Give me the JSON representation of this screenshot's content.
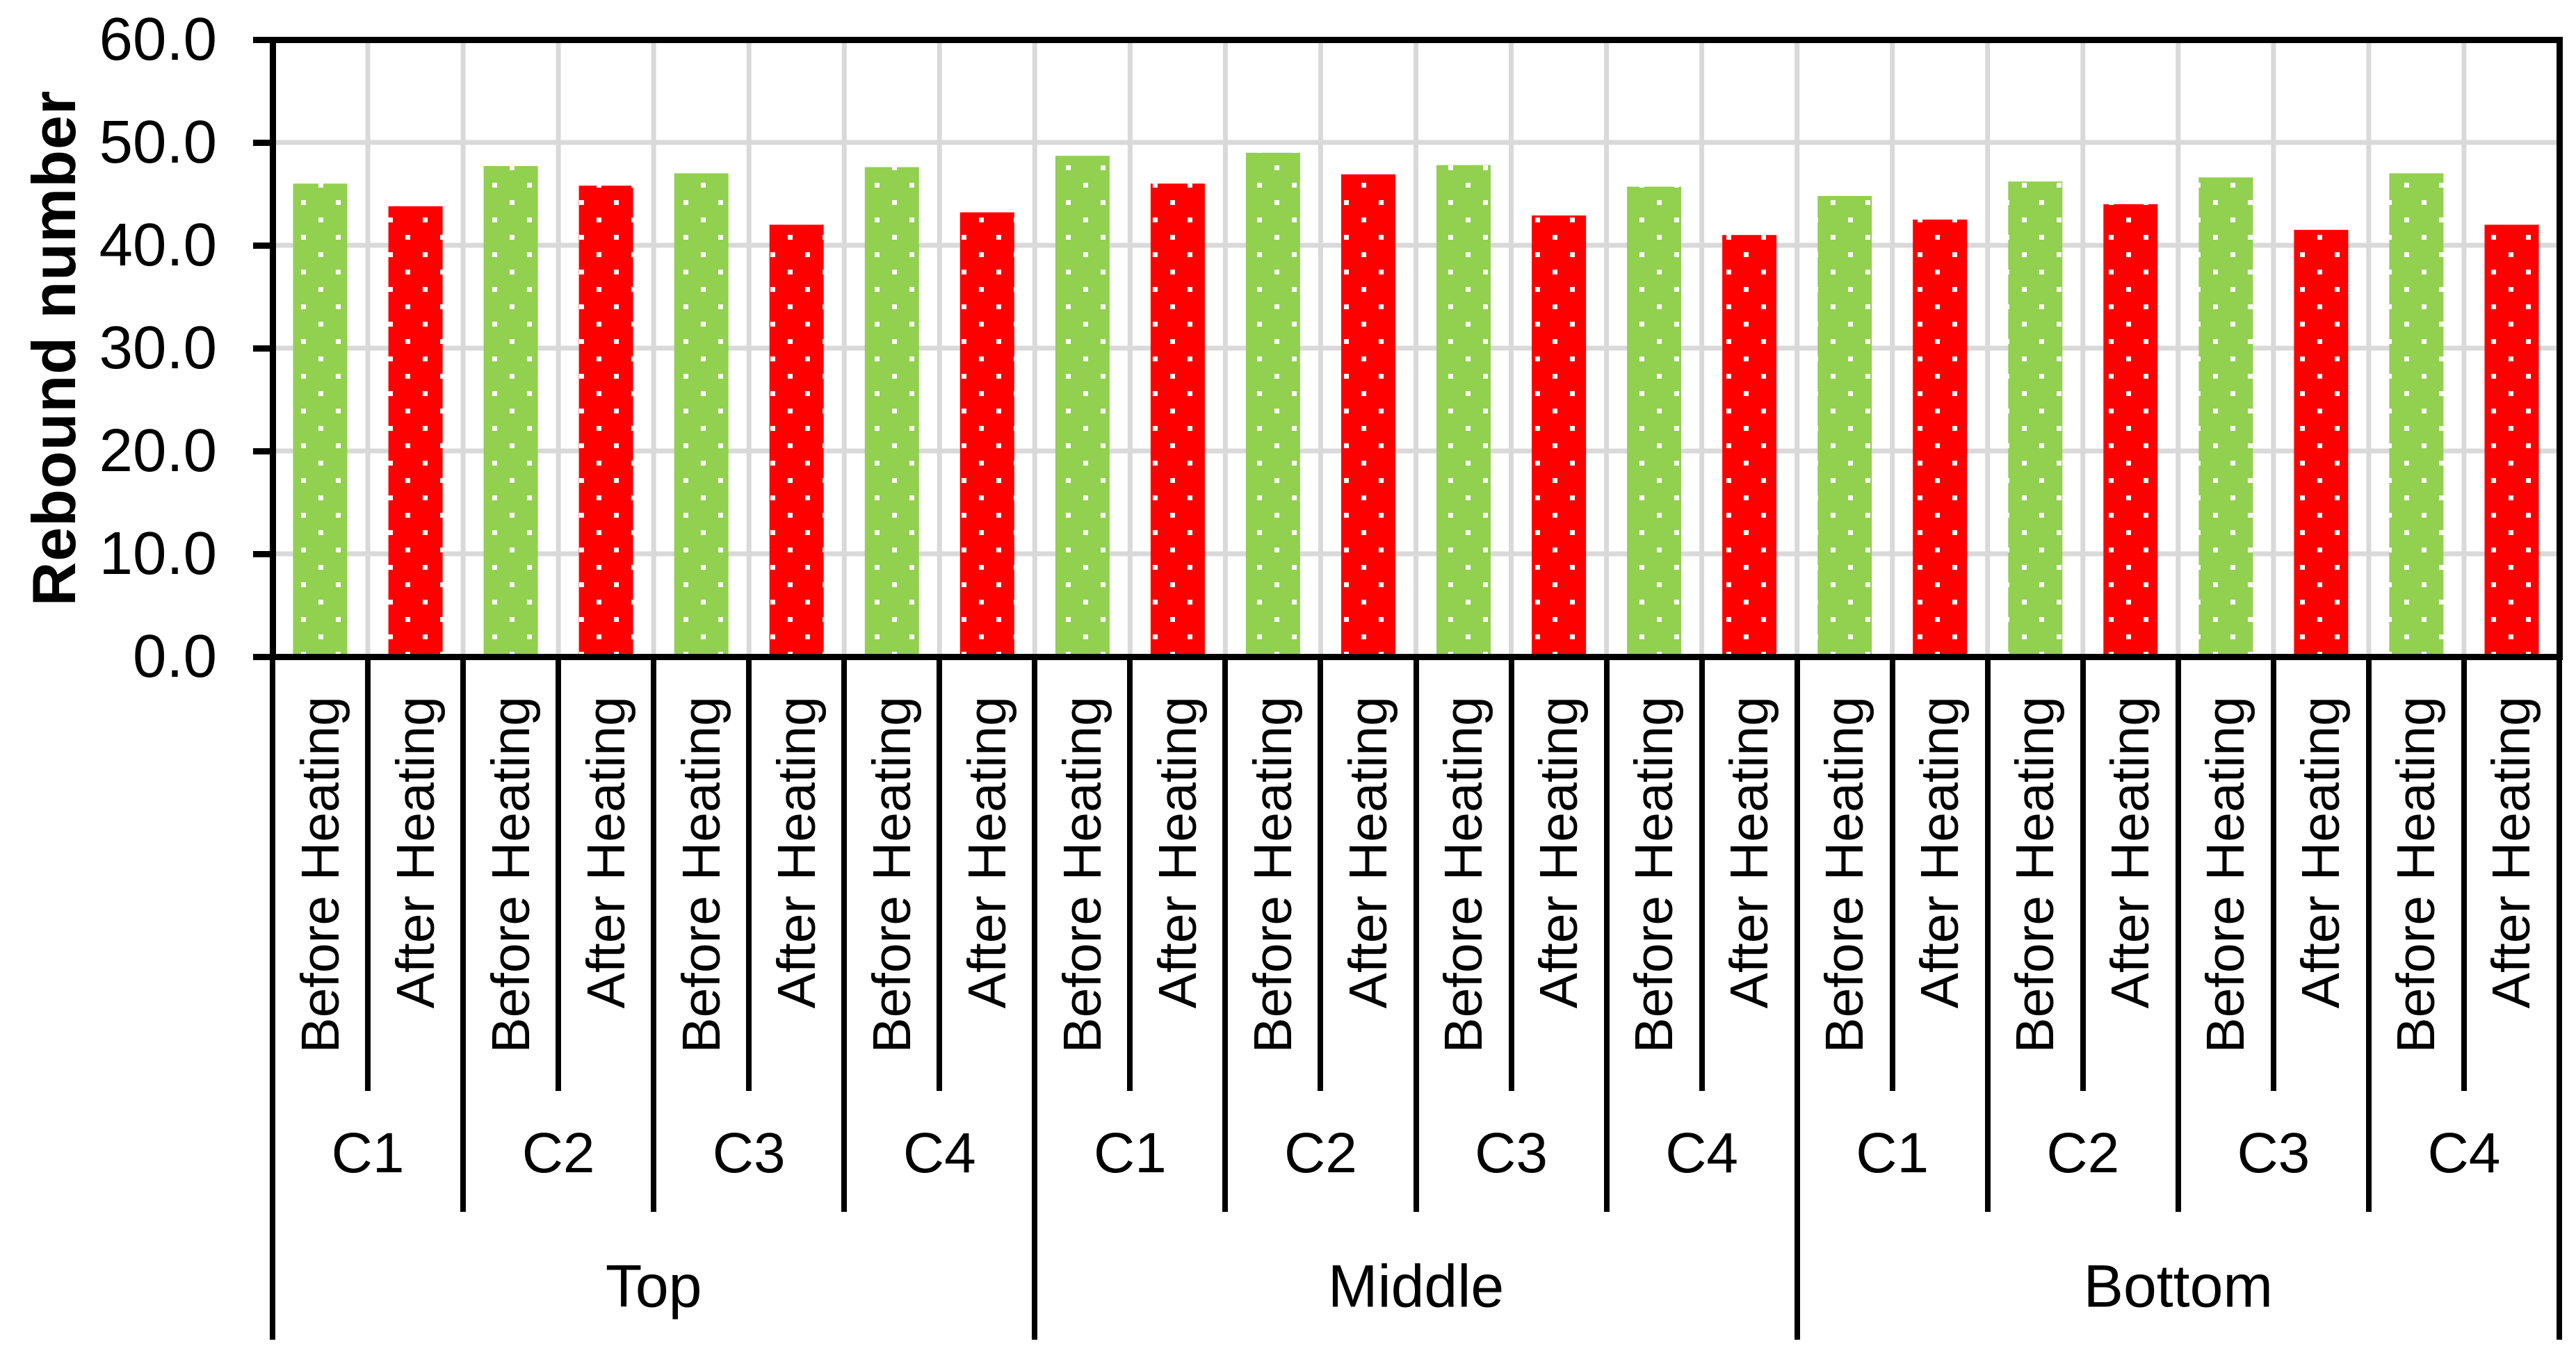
{
  "chart_data": {
    "type": "bar",
    "title": "",
    "ylabel": "Rebound number",
    "xlabel": "",
    "y_axis": {
      "min": 0,
      "max": 60,
      "step": 10,
      "decimals": 1,
      "tick_labels": [
        "0.0",
        "10.0",
        "20.0",
        "30.0",
        "40.0",
        "50.0",
        "60.0"
      ]
    },
    "grid": true,
    "legend_position": "none",
    "bar_fill_pattern": "white-square-dots",
    "series": [
      {
        "name": "Before Heating",
        "color": "#92D050"
      },
      {
        "name": "After Heating",
        "color": "#FF0000"
      }
    ],
    "sections": [
      {
        "label": "Top",
        "groups": [
          {
            "label": "C1",
            "values": [
              46.0,
              43.8
            ]
          },
          {
            "label": "C2",
            "values": [
              47.7,
              45.8
            ]
          },
          {
            "label": "C3",
            "values": [
              47.0,
              42.0
            ]
          },
          {
            "label": "C4",
            "values": [
              47.6,
              43.2
            ]
          }
        ]
      },
      {
        "label": "Middle",
        "groups": [
          {
            "label": "C1",
            "values": [
              48.7,
              46.0
            ]
          },
          {
            "label": "C2",
            "values": [
              49.0,
              46.9
            ]
          },
          {
            "label": "C3",
            "values": [
              47.8,
              42.9
            ]
          },
          {
            "label": "C4",
            "values": [
              45.7,
              41.0
            ]
          }
        ]
      },
      {
        "label": "Bottom",
        "groups": [
          {
            "label": "C1",
            "values": [
              44.8,
              42.5
            ]
          },
          {
            "label": "C2",
            "values": [
              46.2,
              44.0
            ]
          },
          {
            "label": "C3",
            "values": [
              46.6,
              41.5
            ]
          },
          {
            "label": "C4",
            "values": [
              47.0,
              42.0
            ]
          }
        ]
      }
    ],
    "colors": {
      "axis": "#000000",
      "gridline": "#D9D9D9",
      "dot": "#FFFFFF",
      "text": "#000000",
      "background": "#FFFFFF"
    }
  }
}
